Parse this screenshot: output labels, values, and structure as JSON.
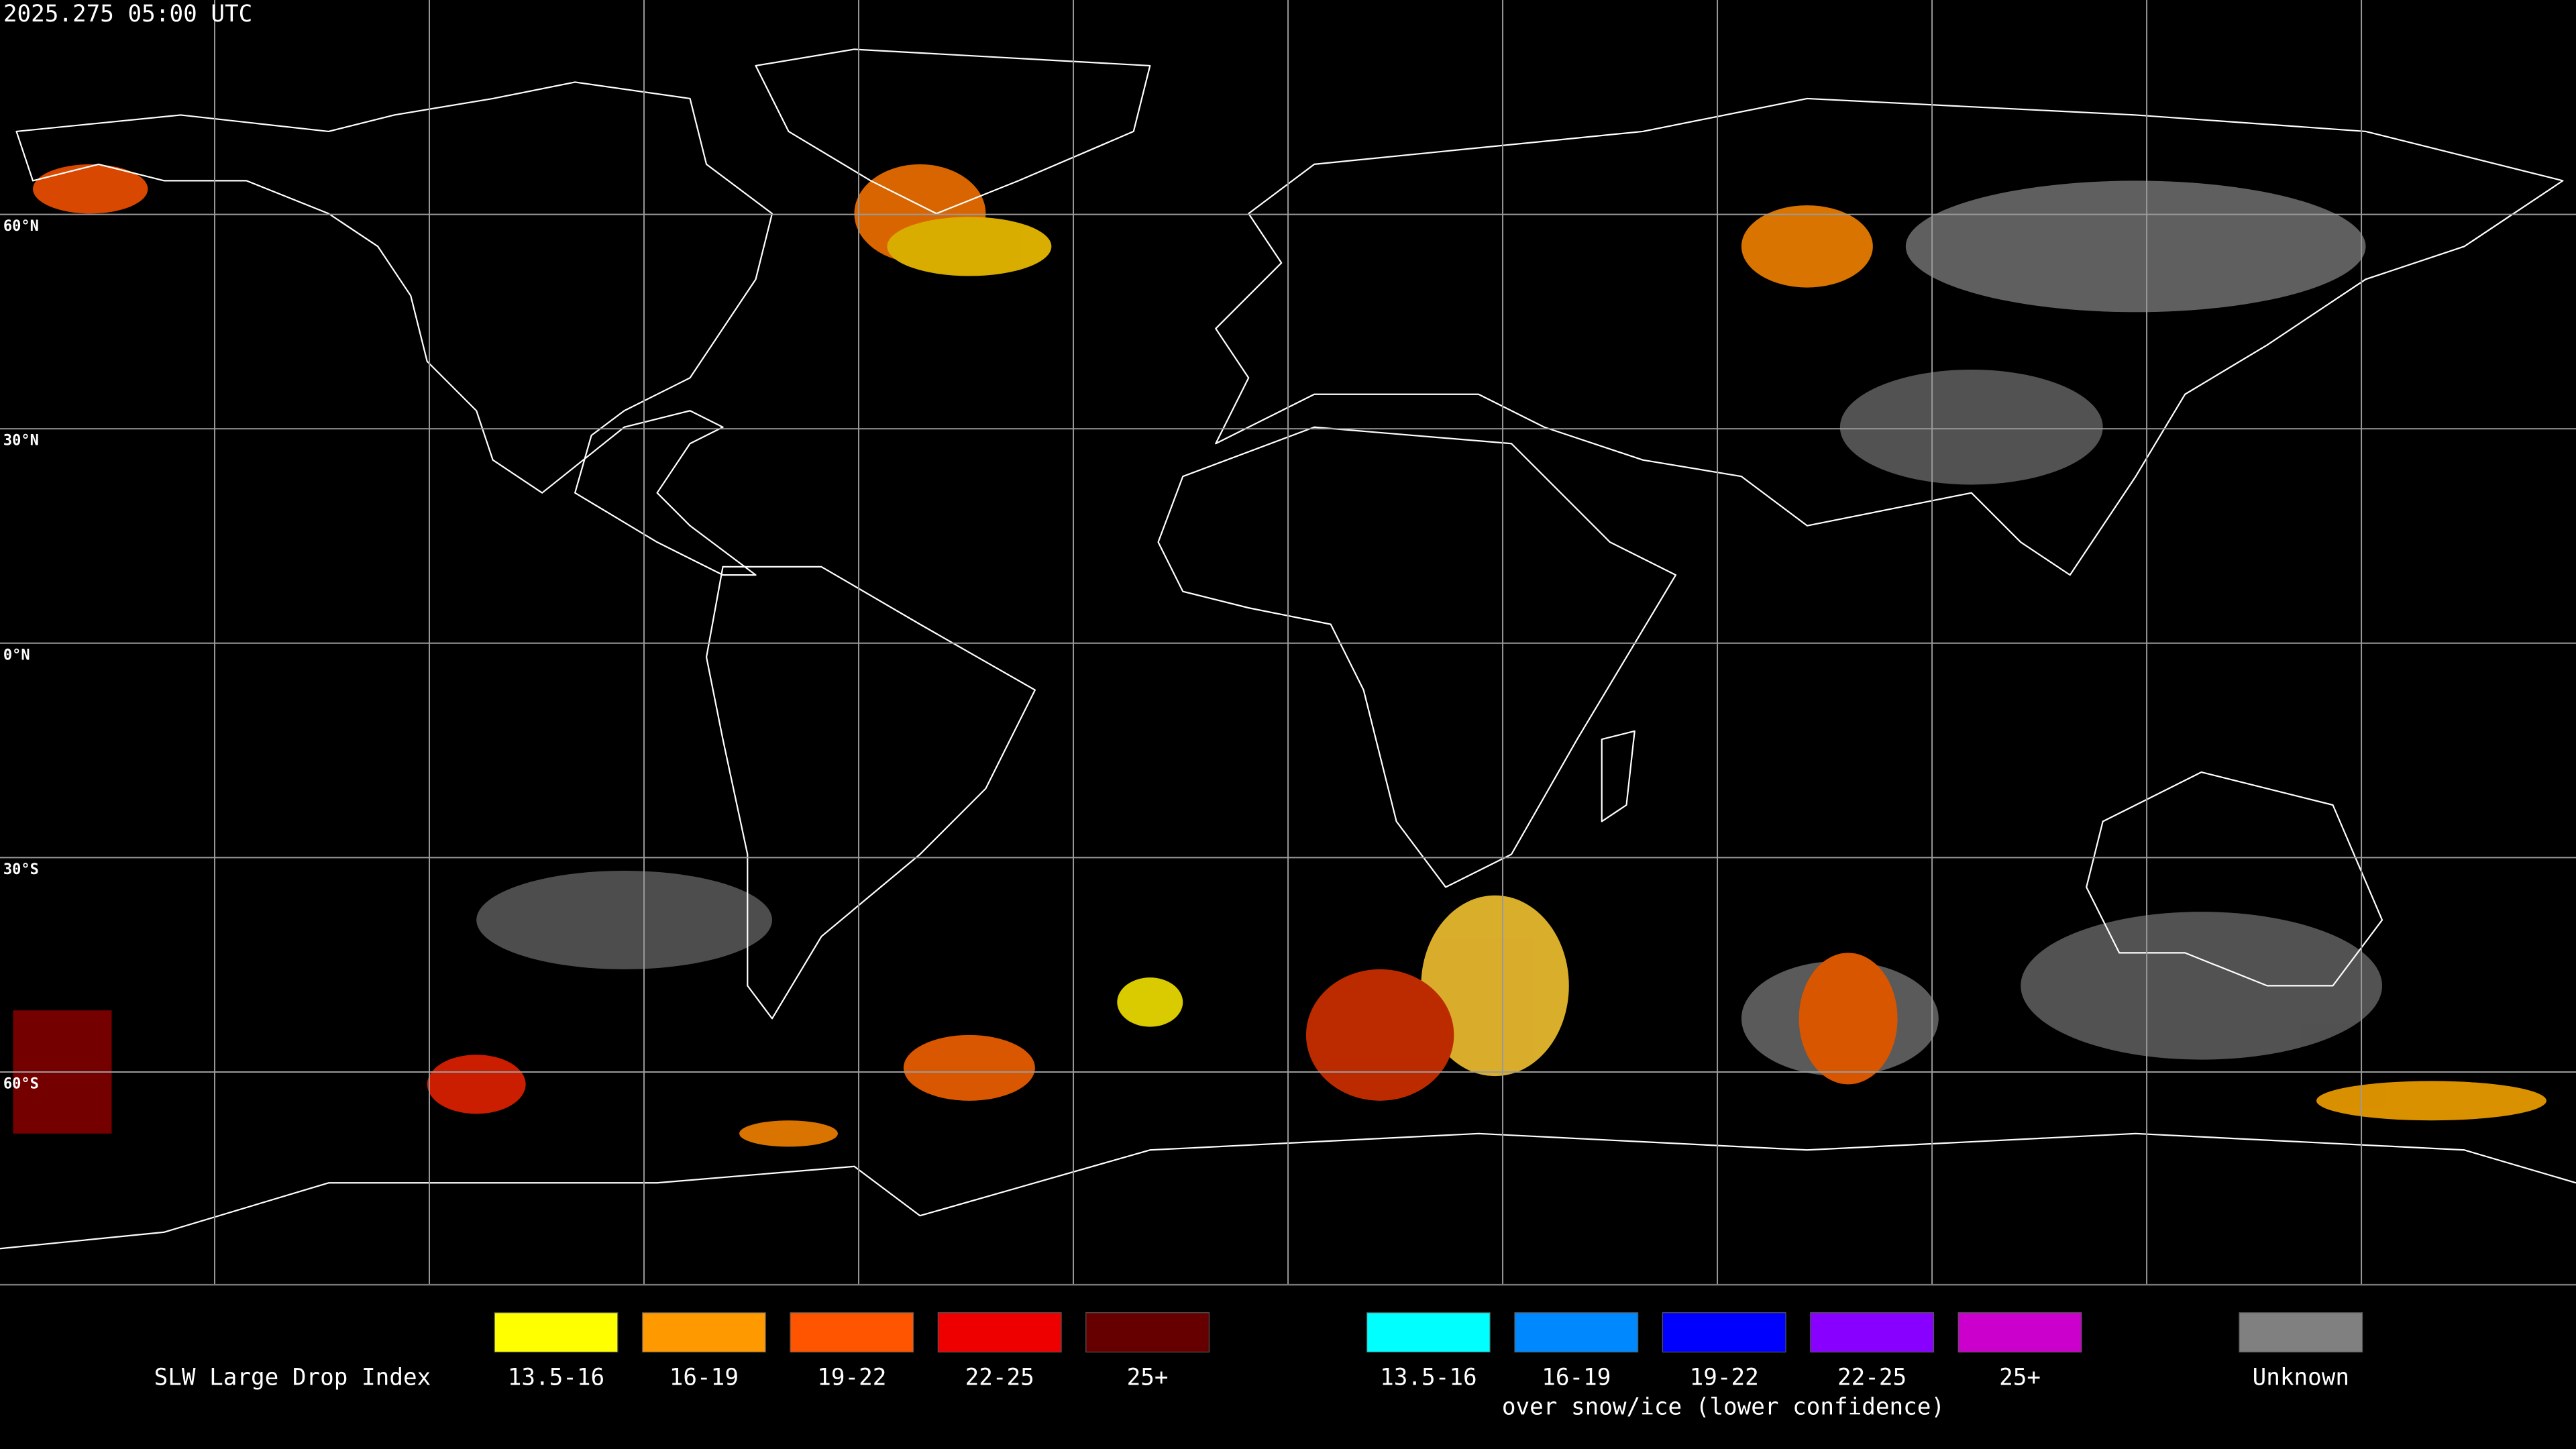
{
  "header": {
    "timestamp": "2025.275 05:00 UTC"
  },
  "map": {
    "lat_labels": [
      "60°N",
      "30°N",
      "0°N",
      "30°S",
      "60°S"
    ]
  },
  "legend": {
    "title": "SLW Large Drop Index",
    "items": [
      {
        "label": "13.5-16",
        "color": "#ffff00"
      },
      {
        "label": "16-19",
        "color": "#ff9900"
      },
      {
        "label": "19-22",
        "color": "#ff5500"
      },
      {
        "label": "22-25",
        "color": "#ee0000"
      },
      {
        "label": "25+",
        "color": "#660000"
      }
    ],
    "snow_items": [
      {
        "label": "13.5-16",
        "color": "#00ffff"
      },
      {
        "label": "16-19",
        "color": "#0088ff"
      },
      {
        "label": "19-22",
        "color": "#0000ff"
      },
      {
        "label": "22-25",
        "color": "#8800ff"
      },
      {
        "label": "25+",
        "color": "#cc00cc"
      }
    ],
    "snow_note": "over snow/ice (lower confidence)",
    "unknown": {
      "label": "Unknown",
      "color": "#808080"
    }
  }
}
